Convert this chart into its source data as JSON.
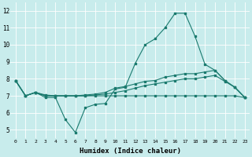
{
  "xlabel": "Humidex (Indice chaleur)",
  "background_color": "#c8ecec",
  "grid_color": "#ffffff",
  "line_color": "#1a7a6e",
  "xlim": [
    -0.5,
    23.5
  ],
  "ylim": [
    4.5,
    12.5
  ],
  "yticks": [
    5,
    6,
    7,
    8,
    9,
    10,
    11,
    12
  ],
  "xticks": [
    0,
    1,
    2,
    3,
    4,
    5,
    6,
    7,
    8,
    9,
    10,
    11,
    12,
    13,
    14,
    15,
    16,
    17,
    18,
    19,
    20,
    21,
    22,
    23
  ],
  "series": [
    {
      "x": [
        0,
        1,
        2,
        3,
        4,
        5,
        6,
        7,
        8,
        9,
        10,
        11,
        12,
        13,
        14,
        15,
        16,
        17,
        18,
        19,
        20,
        21,
        22,
        23
      ],
      "y": [
        7.9,
        7.0,
        7.2,
        6.9,
        6.9,
        5.6,
        4.85,
        6.3,
        6.5,
        6.55,
        7.4,
        7.5,
        8.9,
        10.0,
        10.35,
        11.0,
        11.85,
        11.85,
        10.5,
        8.85,
        8.5,
        7.9,
        7.5,
        6.9
      ]
    },
    {
      "x": [
        0,
        1,
        2,
        3,
        4,
        5,
        6,
        7,
        8,
        9,
        10,
        11,
        12,
        13,
        14,
        15,
        16,
        17,
        18,
        19,
        20,
        21,
        22,
        23
      ],
      "y": [
        7.9,
        7.0,
        7.2,
        7.0,
        7.0,
        7.0,
        7.0,
        7.05,
        7.1,
        7.2,
        7.45,
        7.55,
        7.7,
        7.85,
        7.9,
        8.1,
        8.2,
        8.3,
        8.3,
        8.4,
        8.5,
        7.9,
        7.5,
        6.9
      ]
    },
    {
      "x": [
        0,
        1,
        2,
        3,
        4,
        5,
        6,
        7,
        8,
        9,
        10,
        11,
        12,
        13,
        14,
        15,
        16,
        17,
        18,
        19,
        20,
        21,
        22,
        23
      ],
      "y": [
        7.9,
        7.0,
        7.2,
        7.0,
        7.0,
        7.0,
        7.0,
        7.0,
        7.0,
        7.0,
        7.0,
        7.0,
        7.0,
        7.0,
        7.0,
        7.0,
        7.0,
        7.0,
        7.0,
        7.0,
        7.0,
        7.0,
        7.0,
        6.9
      ]
    },
    {
      "x": [
        0,
        1,
        2,
        3,
        4,
        5,
        6,
        7,
        8,
        9,
        10,
        11,
        12,
        13,
        14,
        15,
        16,
        17,
        18,
        19,
        20,
        21,
        22,
        23
      ],
      "y": [
        7.9,
        7.0,
        7.2,
        7.05,
        7.0,
        7.0,
        7.0,
        7.0,
        7.05,
        7.1,
        7.2,
        7.3,
        7.45,
        7.6,
        7.7,
        7.8,
        7.9,
        8.0,
        8.0,
        8.1,
        8.2,
        7.85,
        7.5,
        6.9
      ]
    }
  ]
}
